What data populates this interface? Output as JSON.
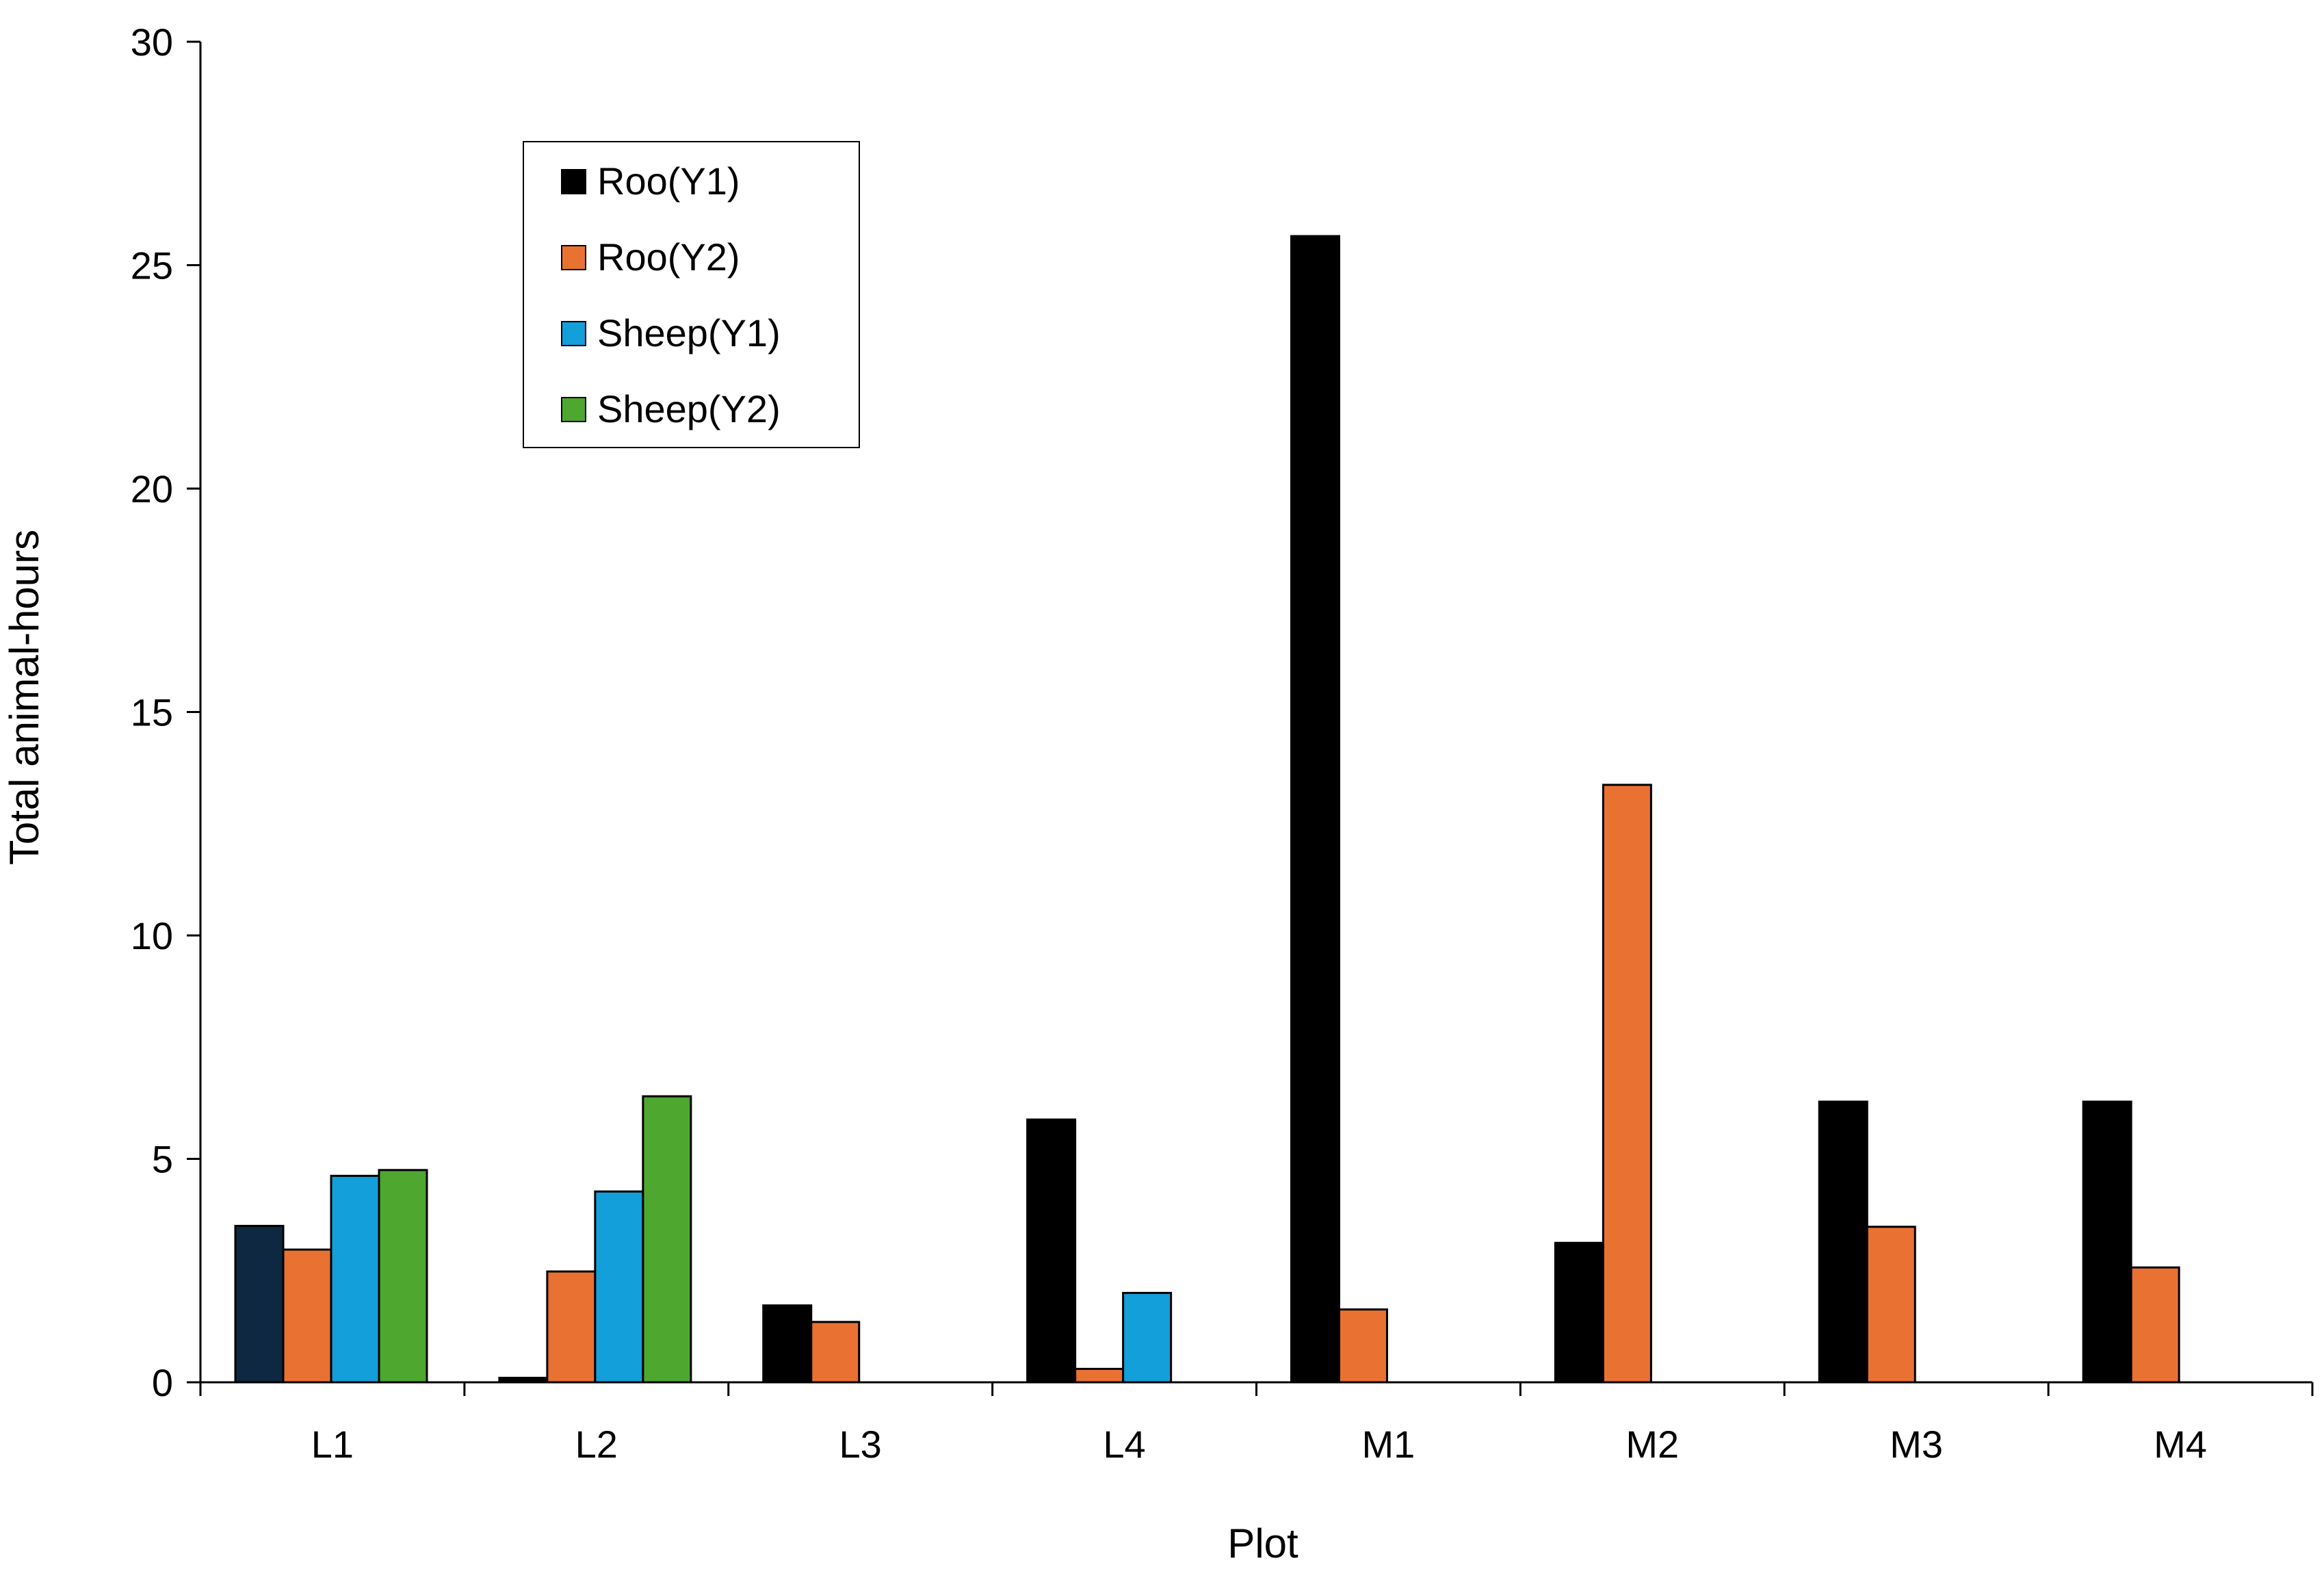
{
  "chart_data": {
    "type": "bar",
    "title": "",
    "xlabel": "Plot",
    "ylabel": "Total animal-hours",
    "ylim": [
      0,
      30
    ],
    "yticks": [
      "0",
      "5",
      "10",
      "15",
      "20",
      "25",
      "30"
    ],
    "categories": [
      "L1",
      "L2",
      "L3",
      "L4",
      "M1",
      "M2",
      "M3",
      "M4"
    ],
    "series": [
      {
        "name": "Roo(Y1)",
        "color": "#000000",
        "values": [
          3.5,
          0.1,
          1.72,
          5.88,
          25.65,
          3.12,
          6.28,
          6.28
        ]
      },
      {
        "name": "Roo(Y2)",
        "color": "#E97132",
        "values": [
          2.97,
          2.48,
          1.35,
          0.3,
          1.63,
          13.37,
          3.48,
          2.57
        ]
      },
      {
        "name": "Sheep(Y1)",
        "color": "#129FDA",
        "values": [
          4.62,
          4.27,
          null,
          2.0,
          null,
          null,
          null,
          null
        ]
      },
      {
        "name": "Sheep(Y2)",
        "color": "#4EA72E",
        "values": [
          4.75,
          6.4,
          null,
          null,
          null,
          null,
          null,
          null
        ]
      }
    ],
    "special_colors": [
      {
        "series": 0,
        "category": 0,
        "color": "#0E2841"
      }
    ],
    "grid": false,
    "legend_position": "top-left"
  }
}
